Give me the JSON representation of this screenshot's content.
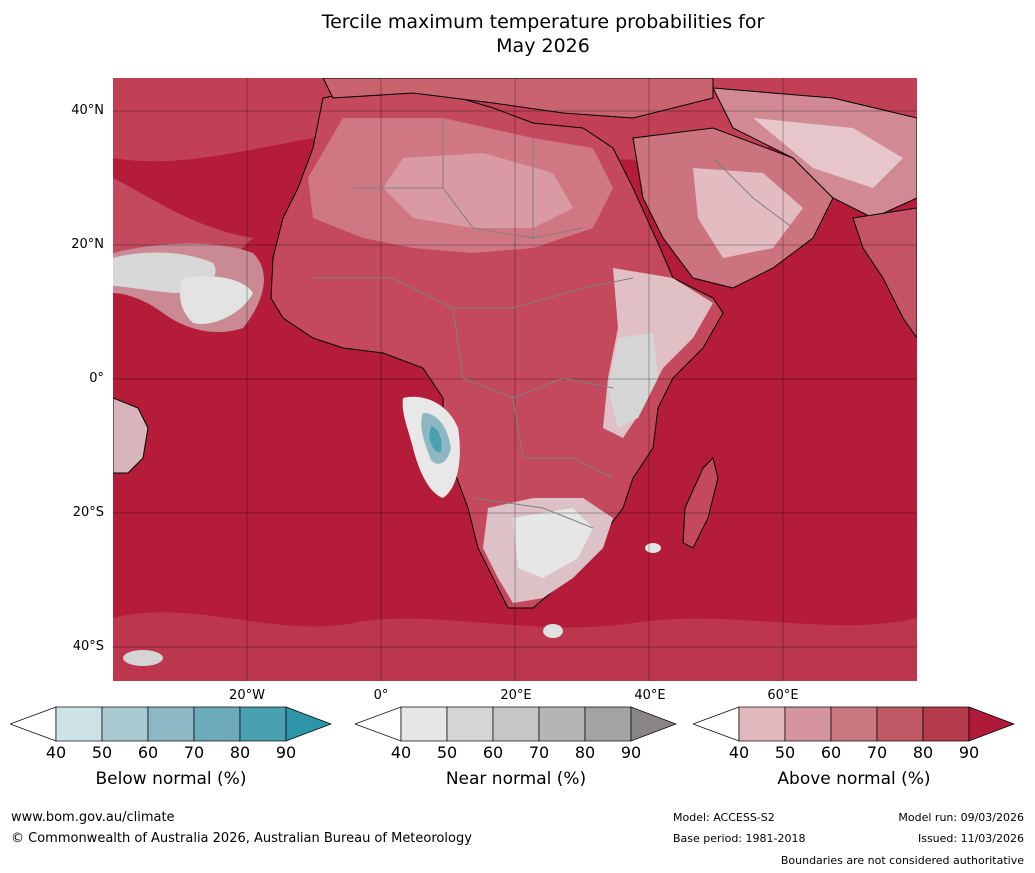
{
  "title": {
    "line1": "Tercile maximum temperature probabilities for",
    "line2": "May 2026"
  },
  "map": {
    "latitude_labels": [
      "40°N",
      "20°N",
      "0°",
      "20°S",
      "40°S"
    ],
    "longitude_labels": [
      "20°W",
      "0°",
      "20°E",
      "40°E",
      "60°E"
    ],
    "colors": {
      "ocean_above": "#b41c3a",
      "land_above_low": "#d58a96",
      "near_normal": "#d8d8d8",
      "below_normal": "#4aa0b0",
      "coastline": "#000000",
      "borders": "#808080"
    }
  },
  "colorbars": [
    {
      "label": "Below normal (%)",
      "ticks": [
        "40",
        "50",
        "60",
        "70",
        "80",
        "90"
      ],
      "colors": [
        "#ffffff",
        "#cde3e8",
        "#a9cad1",
        "#8cb7c3",
        "#6eabba",
        "#4aa0b0",
        "#2e94a7"
      ]
    },
    {
      "label": "Near normal (%)",
      "ticks": [
        "40",
        "50",
        "60",
        "70",
        "80",
        "90"
      ],
      "colors": [
        "#ffffff",
        "#e6e6e6",
        "#d5d5d5",
        "#c6c6c6",
        "#b5b5b5",
        "#a3a3a3",
        "#8a8585"
      ]
    },
    {
      "label": "Above normal (%)",
      "ticks": [
        "40",
        "50",
        "60",
        "70",
        "80",
        "90"
      ],
      "colors": [
        "#ffffff",
        "#e2b8bf",
        "#d4959f",
        "#c97781",
        "#c05a67",
        "#b53a4c",
        "#b1193a"
      ]
    }
  ],
  "footer": {
    "website": "www.bom.gov.au/climate",
    "copyright": "© Commonwealth of Australia 2026, Australian Bureau of Meteorology",
    "model": "Model: ACCESS-S2",
    "base_period": "Base period: 1981-2018",
    "model_run": "Model run: 09/03/2026",
    "issued": "Issued: 11/03/2026",
    "disclaimer": "Boundaries are not considered authoritative"
  }
}
